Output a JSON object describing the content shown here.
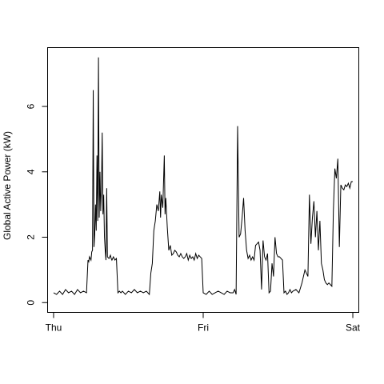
{
  "chart_data": {
    "type": "line",
    "title": "",
    "xlabel": "",
    "ylabel": "Global Active Power (kW)",
    "x_ticks": [
      {
        "label": "Thu",
        "value": 0
      },
      {
        "label": "Fri",
        "value": 1
      },
      {
        "label": "Sat",
        "value": 2
      }
    ],
    "y_ticks": [
      0,
      2,
      4,
      6
    ],
    "xlim": [
      -0.04,
      2.04
    ],
    "ylim": [
      -0.3,
      7.8
    ],
    "grid": false,
    "legend": "none",
    "color": "#000000",
    "x": [
      0.0,
      0.02,
      0.04,
      0.06,
      0.08,
      0.1,
      0.12,
      0.14,
      0.16,
      0.18,
      0.2,
      0.22,
      0.23,
      0.235,
      0.24,
      0.25,
      0.255,
      0.26,
      0.265,
      0.27,
      0.275,
      0.28,
      0.285,
      0.29,
      0.295,
      0.3,
      0.305,
      0.31,
      0.315,
      0.32,
      0.325,
      0.33,
      0.335,
      0.34,
      0.345,
      0.35,
      0.355,
      0.36,
      0.37,
      0.38,
      0.385,
      0.39,
      0.4,
      0.41,
      0.42,
      0.43,
      0.44,
      0.45,
      0.46,
      0.48,
      0.5,
      0.52,
      0.54,
      0.56,
      0.58,
      0.6,
      0.62,
      0.64,
      0.65,
      0.66,
      0.67,
      0.68,
      0.69,
      0.7,
      0.71,
      0.715,
      0.72,
      0.73,
      0.74,
      0.745,
      0.75,
      0.76,
      0.77,
      0.78,
      0.79,
      0.8,
      0.81,
      0.82,
      0.83,
      0.84,
      0.85,
      0.86,
      0.87,
      0.88,
      0.89,
      0.9,
      0.91,
      0.92,
      0.93,
      0.94,
      0.95,
      0.96,
      0.97,
      0.98,
      0.99,
      1.0,
      1.02,
      1.04,
      1.06,
      1.08,
      1.1,
      1.12,
      1.14,
      1.16,
      1.18,
      1.2,
      1.21,
      1.22,
      1.23,
      1.24,
      1.25,
      1.26,
      1.27,
      1.28,
      1.29,
      1.3,
      1.31,
      1.32,
      1.33,
      1.34,
      1.35,
      1.36,
      1.37,
      1.38,
      1.39,
      1.4,
      1.41,
      1.42,
      1.43,
      1.44,
      1.45,
      1.46,
      1.47,
      1.48,
      1.49,
      1.5,
      1.51,
      1.52,
      1.53,
      1.54,
      1.55,
      1.56,
      1.57,
      1.58,
      1.59,
      1.6,
      1.62,
      1.64,
      1.66,
      1.68,
      1.7,
      1.71,
      1.72,
      1.73,
      1.74,
      1.75,
      1.76,
      1.77,
      1.78,
      1.79,
      1.8,
      1.81,
      1.82,
      1.83,
      1.84,
      1.85,
      1.86,
      1.87,
      1.88,
      1.89,
      1.9,
      1.91,
      1.92,
      1.93,
      1.94,
      1.95,
      1.96,
      1.97,
      1.98,
      1.99,
      2.0
    ],
    "y": [
      0.3,
      0.25,
      0.35,
      0.25,
      0.4,
      0.3,
      0.35,
      0.25,
      0.4,
      0.3,
      0.35,
      0.3,
      1.3,
      1.25,
      1.4,
      1.3,
      1.55,
      1.6,
      6.5,
      1.7,
      2.1,
      3.0,
      2.2,
      4.5,
      2.5,
      7.5,
      2.6,
      4.0,
      2.8,
      3.5,
      5.2,
      2.7,
      3.3,
      2.0,
      1.6,
      1.3,
      3.5,
      1.4,
      1.35,
      1.45,
      1.35,
      1.3,
      1.4,
      1.3,
      1.35,
      0.3,
      0.35,
      0.3,
      0.35,
      0.25,
      0.35,
      0.3,
      0.4,
      0.3,
      0.35,
      0.3,
      0.35,
      0.25,
      0.9,
      1.2,
      2.2,
      2.5,
      3.0,
      2.8,
      3.4,
      2.6,
      3.3,
      2.9,
      4.5,
      2.7,
      3.2,
      2.3,
      1.6,
      1.75,
      1.45,
      1.5,
      1.6,
      1.55,
      1.45,
      1.4,
      1.5,
      1.4,
      1.35,
      1.4,
      1.5,
      1.3,
      1.45,
      1.35,
      1.4,
      1.3,
      1.5,
      1.35,
      1.45,
      1.4,
      1.35,
      0.3,
      0.25,
      0.35,
      0.25,
      0.3,
      0.35,
      0.3,
      0.25,
      0.35,
      0.3,
      0.3,
      0.4,
      0.25,
      5.4,
      2.0,
      2.1,
      2.6,
      3.2,
      2.2,
      1.6,
      1.35,
      1.45,
      1.3,
      1.4,
      1.3,
      1.75,
      1.8,
      1.85,
      1.6,
      0.4,
      1.9,
      1.4,
      1.3,
      1.5,
      0.3,
      0.35,
      1.2,
      0.8,
      2.0,
      1.5,
      1.4,
      1.4,
      1.35,
      1.3,
      0.3,
      0.35,
      0.25,
      0.3,
      0.4,
      0.3,
      0.35,
      0.4,
      0.3,
      0.6,
      1.0,
      0.8,
      3.3,
      1.8,
      2.6,
      3.1,
      2.0,
      2.8,
      1.6,
      2.5,
      1.2,
      1.0,
      0.7,
      0.6,
      0.55,
      0.6,
      0.55,
      0.5,
      2.8,
      4.1,
      3.8,
      4.4,
      1.7,
      3.6,
      3.5,
      3.45,
      3.6,
      3.55,
      3.65,
      3.5,
      3.7,
      3.7
    ]
  }
}
